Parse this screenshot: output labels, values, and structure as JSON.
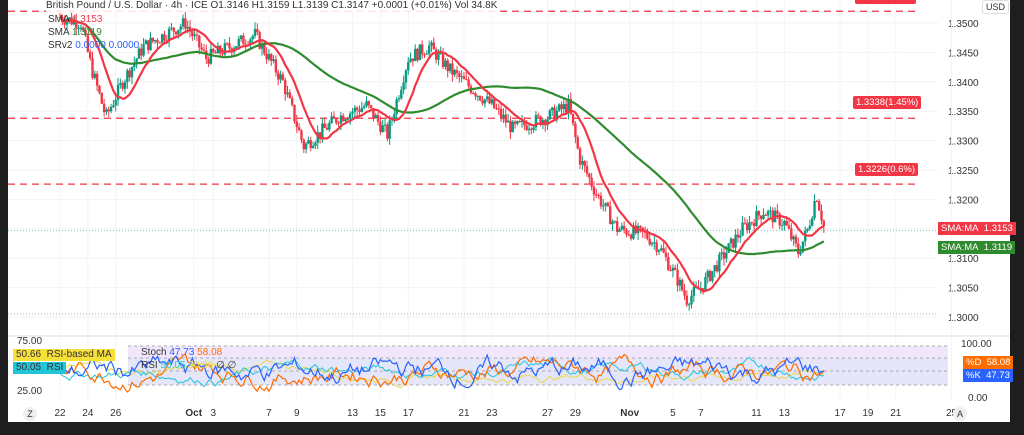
{
  "header": {
    "title": "British Pound / U.S. Dollar · 4h · ICE",
    "ohlc": "O1.3146 H1.3159 L1.3139 C1.3147 +0.0001 (+0.01%) Vol 34.8K"
  },
  "legend": {
    "sma1": "SMA",
    "sma1_val": "1.3153",
    "sma2": "SMA",
    "sma2_val": "1.3119",
    "srv2": "SRv2",
    "srv2_a": "0.0000",
    "srv2_b": "0.0000"
  },
  "price_axis": {
    "currency": "USD"
  },
  "levels": [
    {
      "price": 1.3338,
      "label": "1.3338(1.45%)"
    },
    {
      "price": 1.3226,
      "label": "1.3226(0.6%)"
    },
    {
      "price": 1.352,
      "label": ""
    }
  ],
  "tags": {
    "sma_fast_name": "SMA:MA",
    "sma_fast_val": "1.3153",
    "sma_slow_name": "SMA:MA",
    "sma_slow_val": "1.3119"
  },
  "osc": {
    "stoch": "Stoch",
    "stoch_k": "47.73",
    "stoch_d": "58.08",
    "rsi": "RSI",
    "rsi_val": "50.05",
    "rsi_ma_val": "50.66",
    "nil1": "∅",
    "nil2": "∅",
    "left_rsima": "50.66",
    "left_rsima_label": "RSI-based MA",
    "left_rsi": "50.05",
    "left_rsi_label": "RSI",
    "left_75": "75.00",
    "left_25": "25.00",
    "right_100": "100.00",
    "right_0": "0.00",
    "d_label": "%D",
    "d_val": "58.08",
    "k_label": "%K",
    "k_val": "47.73"
  },
  "bottom": {
    "z": "Z",
    "a": "A"
  },
  "colors": {
    "up": "#089981",
    "down": "#f23645",
    "sma_fast": "#f23645",
    "sma_slow": "#2e8b2e",
    "stoch_k": "#2962ff",
    "stoch_d": "#ff6d00",
    "rsi": "#22c4d8",
    "rsi_ma": "#e8d84a"
  },
  "chart_data": {
    "type": "candlestick",
    "timeframe": "4h",
    "yaxis_ticks": [
      "1.3500",
      "1.3450",
      "1.3400",
      "1.3350",
      "1.3300",
      "1.3250",
      "1.3200",
      "1.3150",
      "1.3100",
      "1.3050",
      "1.3000"
    ],
    "ylim": [
      1.2985,
      1.3525
    ],
    "xaxis_ticks": [
      "22",
      "24",
      "26",
      "Oct",
      "3",
      "7",
      "9",
      "13",
      "15",
      "17",
      "21",
      "23",
      "27",
      "29",
      "Nov",
      "5",
      "7",
      "11",
      "13",
      "17",
      "19",
      "21",
      "25"
    ],
    "close_path_by_day": [
      [
        0,
        1.351
      ],
      [
        1.5,
        1.35
      ],
      [
        2.3,
        1.342
      ],
      [
        3.3,
        1.334
      ],
      [
        4.5,
        1.34
      ],
      [
        6,
        1.346
      ],
      [
        9,
        1.35
      ],
      [
        10.5,
        1.344
      ],
      [
        14,
        1.348
      ],
      [
        16,
        1.34
      ],
      [
        17.5,
        1.329
      ],
      [
        20,
        1.334
      ],
      [
        22,
        1.336
      ],
      [
        23.5,
        1.331
      ],
      [
        25,
        1.344
      ],
      [
        26.5,
        1.346
      ],
      [
        28,
        1.342
      ],
      [
        30,
        1.338
      ],
      [
        31,
        1.336
      ],
      [
        32.5,
        1.332
      ],
      [
        35,
        1.334
      ],
      [
        36.5,
        1.336
      ],
      [
        37.3,
        1.327
      ],
      [
        38.5,
        1.321
      ],
      [
        40,
        1.315
      ],
      [
        42,
        1.314
      ],
      [
        43,
        1.312
      ],
      [
        44.3,
        1.3065
      ],
      [
        45,
        1.303
      ],
      [
        46,
        1.305
      ],
      [
        47.5,
        1.31
      ],
      [
        49,
        1.315
      ],
      [
        50.5,
        1.318
      ],
      [
        52,
        1.316
      ],
      [
        53,
        1.311
      ],
      [
        53.7,
        1.315
      ],
      [
        54.3,
        1.321
      ],
      [
        54.9,
        1.3147
      ]
    ],
    "sma_fast_last": 1.3153,
    "sma_slow_last": 1.3119
  }
}
